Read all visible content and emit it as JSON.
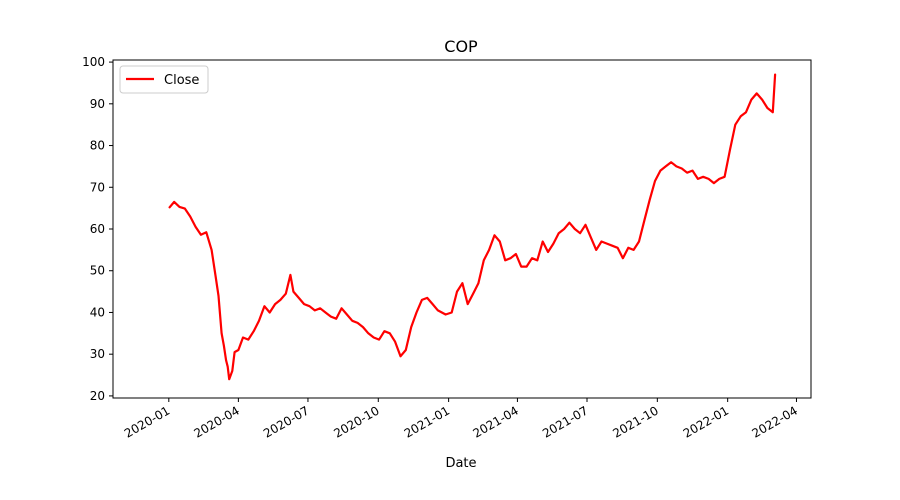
{
  "chart_data": {
    "type": "line",
    "title": "COP",
    "xlabel": "Date",
    "ylabel": "",
    "xlim": [
      "2019-10-20",
      "2022-04-20"
    ],
    "ylim": [
      19.5,
      100.5
    ],
    "grid": false,
    "legend_position": "top-left",
    "x_ticks": [
      "2020-01",
      "2020-04",
      "2020-07",
      "2020-10",
      "2021-01",
      "2021-04",
      "2021-07",
      "2021-10",
      "2022-01",
      "2022-04"
    ],
    "y_ticks": [
      20,
      30,
      40,
      50,
      60,
      70,
      80,
      90,
      100
    ],
    "series": [
      {
        "name": "Close",
        "color": "#ff0000",
        "x": [
          "2020-01-02",
          "2020-01-08",
          "2020-01-15",
          "2020-01-22",
          "2020-01-29",
          "2020-02-05",
          "2020-02-12",
          "2020-02-19",
          "2020-02-26",
          "2020-03-02",
          "2020-03-06",
          "2020-03-10",
          "2020-03-13",
          "2020-03-16",
          "2020-03-18",
          "2020-03-20",
          "2020-03-24",
          "2020-03-27",
          "2020-04-01",
          "2020-04-07",
          "2020-04-14",
          "2020-04-21",
          "2020-04-28",
          "2020-05-05",
          "2020-05-12",
          "2020-05-19",
          "2020-05-26",
          "2020-06-02",
          "2020-06-08",
          "2020-06-12",
          "2020-06-19",
          "2020-06-26",
          "2020-07-03",
          "2020-07-10",
          "2020-07-17",
          "2020-07-24",
          "2020-07-31",
          "2020-08-07",
          "2020-08-14",
          "2020-08-21",
          "2020-08-28",
          "2020-09-04",
          "2020-09-11",
          "2020-09-18",
          "2020-09-25",
          "2020-10-02",
          "2020-10-09",
          "2020-10-16",
          "2020-10-23",
          "2020-10-30",
          "2020-11-06",
          "2020-11-13",
          "2020-11-20",
          "2020-11-27",
          "2020-12-04",
          "2020-12-11",
          "2020-12-18",
          "2020-12-28",
          "2021-01-05",
          "2021-01-12",
          "2021-01-19",
          "2021-01-26",
          "2021-02-02",
          "2021-02-09",
          "2021-02-16",
          "2021-02-23",
          "2021-03-02",
          "2021-03-09",
          "2021-03-16",
          "2021-03-23",
          "2021-03-30",
          "2021-04-06",
          "2021-04-13",
          "2021-04-20",
          "2021-04-27",
          "2021-05-04",
          "2021-05-11",
          "2021-05-18",
          "2021-05-25",
          "2021-06-01",
          "2021-06-08",
          "2021-06-15",
          "2021-06-22",
          "2021-06-29",
          "2021-07-06",
          "2021-07-13",
          "2021-07-20",
          "2021-07-27",
          "2021-08-03",
          "2021-08-10",
          "2021-08-17",
          "2021-08-24",
          "2021-08-31",
          "2021-09-07",
          "2021-09-14",
          "2021-09-21",
          "2021-09-28",
          "2021-10-05",
          "2021-10-12",
          "2021-10-19",
          "2021-10-26",
          "2021-11-02",
          "2021-11-09",
          "2021-11-16",
          "2021-11-23",
          "2021-11-30",
          "2021-12-07",
          "2021-12-14",
          "2021-12-21",
          "2021-12-28",
          "2022-01-04",
          "2022-01-11",
          "2022-01-18",
          "2022-01-25",
          "2022-02-01",
          "2022-02-08",
          "2022-02-15",
          "2022-02-22",
          "2022-03-01",
          "2022-03-04"
        ],
        "values": [
          65.2,
          66.5,
          65.3,
          64.9,
          63.0,
          60.5,
          58.6,
          59.2,
          55.0,
          49.0,
          44.0,
          35.0,
          32.0,
          28.5,
          27.0,
          24.0,
          26.0,
          30.5,
          31.0,
          34.0,
          33.5,
          35.5,
          38.0,
          41.5,
          40.0,
          42.0,
          43.0,
          44.5,
          49.0,
          45.0,
          43.5,
          42.0,
          41.5,
          40.5,
          41.0,
          40.0,
          39.0,
          38.5,
          41.0,
          39.5,
          38.0,
          37.5,
          36.5,
          35.0,
          34.0,
          33.5,
          35.5,
          35.0,
          33.0,
          29.5,
          31.0,
          36.5,
          40.0,
          43.0,
          43.5,
          42.0,
          40.5,
          39.5,
          40.0,
          45.0,
          47.0,
          42.0,
          44.5,
          47.0,
          52.5,
          55.0,
          58.5,
          57.0,
          52.5,
          53.0,
          54.0,
          51.0,
          51.0,
          53.0,
          52.5,
          57.0,
          54.5,
          56.5,
          59.0,
          60.0,
          61.5,
          60.0,
          59.0,
          61.0,
          58.0,
          55.0,
          57.0,
          56.5,
          56.0,
          55.5,
          53.0,
          55.5,
          55.0,
          57.0,
          62.0,
          67.0,
          71.5,
          74.0,
          75.0,
          76.0,
          75.0,
          74.5,
          73.5,
          74.0,
          72.0,
          72.5,
          72.0,
          71.0,
          72.0,
          72.5,
          79.0,
          85.0,
          87.0,
          88.0,
          91.0,
          92.5,
          91.0,
          89.0,
          88.0,
          97.0
        ]
      }
    ]
  }
}
